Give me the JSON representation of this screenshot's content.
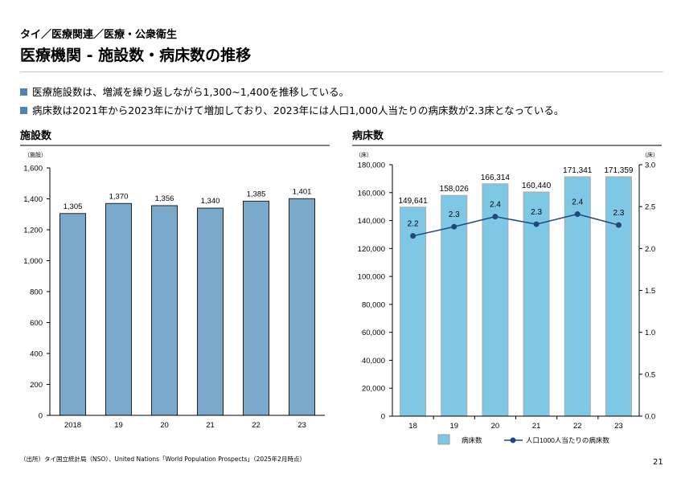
{
  "header": {
    "breadcrumb": "タイ／医療関連／医療・公衆衛生",
    "title": "医療機関 - 施設数・病床数の推移"
  },
  "bullets": [
    "医療施設数は、増減を繰り返しながら1,300~1,400を推移している。",
    "病床数は2021年から2023年にかけて増加しており、2023年には人口1,000人当たりの病床数が2.3床となっている。"
  ],
  "footer": {
    "source": "（出所）タイ国立統計局（NSO）、United Nations「World Population Prospects」（2025年2月時点）",
    "page": "21"
  },
  "chart_data": [
    {
      "type": "bar",
      "title": "施設数",
      "ylabel": "（施設）",
      "categories": [
        "2018",
        "19",
        "20",
        "21",
        "22",
        "23"
      ],
      "values": [
        1305,
        1370,
        1356,
        1340,
        1385,
        1401
      ],
      "value_labels": [
        "1,305",
        "1,370",
        "1,356",
        "1,340",
        "1,385",
        "1,401"
      ],
      "ylim": [
        0,
        1600
      ],
      "yticks": [
        "0",
        "200",
        "400",
        "600",
        "800",
        "1,000",
        "1,200",
        "1,400",
        "1,600"
      ],
      "color": "#7aa9cc"
    },
    {
      "type": "bar+line",
      "title": "病床数",
      "ylabel_left": "（床）",
      "ylabel_right": "（床）",
      "categories": [
        "18",
        "19",
        "20",
        "21",
        "22",
        "23"
      ],
      "series": [
        {
          "name": "病床数",
          "type": "bar",
          "axis": "left",
          "values": [
            149641,
            158026,
            166314,
            160440,
            171341,
            171359
          ],
          "value_labels": [
            "149,641",
            "158,026",
            "166,314",
            "160,440",
            "171,341",
            "171,359"
          ],
          "color": "#7ec8e6"
        },
        {
          "name": "人口1000人当たりの病床数",
          "type": "line",
          "axis": "right",
          "values": [
            2.15,
            2.26,
            2.38,
            2.29,
            2.41,
            2.28
          ],
          "value_labels": [
            "2.2",
            "2.3",
            "2.4",
            "2.3",
            "2.4",
            "2.3"
          ],
          "color": "#1f497d"
        }
      ],
      "ylim_left": [
        0,
        180000
      ],
      "ylim_right": [
        0,
        3.0
      ],
      "yticks_left": [
        "0",
        "20,000",
        "40,000",
        "60,000",
        "80,000",
        "100,000",
        "120,000",
        "140,000",
        "160,000",
        "180,000"
      ],
      "yticks_right": [
        "0.0",
        "0.5",
        "1.0",
        "1.5",
        "2.0",
        "2.5",
        "3.0"
      ],
      "legend": "bottom"
    }
  ]
}
